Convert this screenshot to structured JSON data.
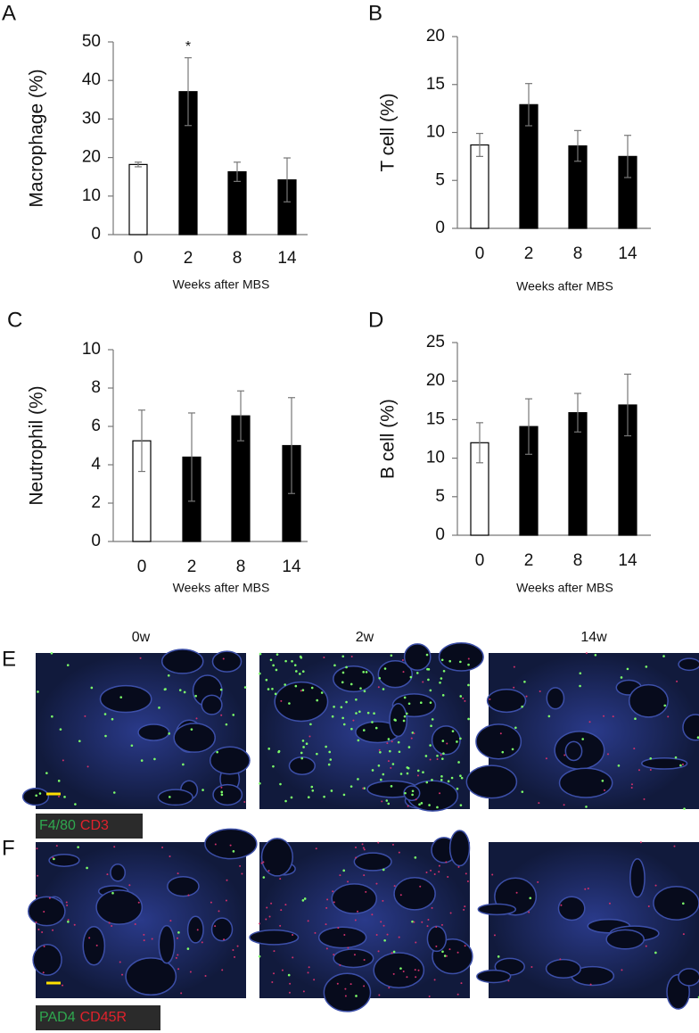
{
  "chart_data": [
    {
      "type": "bar",
      "label": "A",
      "ylabel": "Macrophage (%)",
      "xlabel": "Weeks after MBS",
      "categories": [
        "0",
        "2",
        "8",
        "14"
      ],
      "values": [
        18.2,
        37.1,
        16.3,
        14.2
      ],
      "errors": [
        0.6,
        8.8,
        2.5,
        5.7
      ],
      "colors": [
        "#ffffff",
        "#000000",
        "#000000",
        "#000000"
      ],
      "ylim": [
        0,
        50
      ],
      "yticks": [
        0,
        10,
        20,
        30,
        40,
        50
      ],
      "annotations": [
        {
          "text": "*",
          "x": "2"
        }
      ]
    },
    {
      "type": "bar",
      "label": "B",
      "ylabel": "T cell (%)",
      "xlabel": "Weeks after MBS",
      "categories": [
        "0",
        "2",
        "8",
        "14"
      ],
      "values": [
        8.7,
        12.9,
        8.6,
        7.5
      ],
      "errors": [
        1.2,
        2.2,
        1.6,
        2.2
      ],
      "colors": [
        "#ffffff",
        "#000000",
        "#000000",
        "#000000"
      ],
      "ylim": [
        0,
        20
      ],
      "yticks": [
        0,
        5,
        10,
        15,
        20
      ]
    },
    {
      "type": "bar",
      "label": "C",
      "ylabel": "Neutrophil (%)",
      "xlabel": "Weeks after MBS",
      "categories": [
        "0",
        "2",
        "8",
        "14"
      ],
      "values": [
        5.25,
        4.4,
        6.55,
        5.0
      ],
      "errors": [
        1.6,
        2.3,
        1.3,
        2.5
      ],
      "colors": [
        "#ffffff",
        "#000000",
        "#000000",
        "#000000"
      ],
      "ylim": [
        0,
        10
      ],
      "yticks": [
        0,
        2,
        4,
        6,
        8,
        10
      ]
    },
    {
      "type": "bar",
      "label": "D",
      "ylabel": "B cell (%)",
      "xlabel": "Weeks after MBS",
      "categories": [
        "0",
        "2",
        "8",
        "14"
      ],
      "values": [
        12.0,
        14.1,
        15.9,
        16.9
      ],
      "errors": [
        2.6,
        3.6,
        2.5,
        4.0
      ],
      "colors": [
        "#ffffff",
        "#000000",
        "#000000",
        "#000000"
      ],
      "ylim": [
        0,
        25
      ],
      "yticks": [
        0,
        5,
        10,
        15,
        20,
        25
      ]
    }
  ],
  "images": {
    "columns": [
      "0w",
      "2w",
      "14w"
    ],
    "rows": [
      {
        "label": "E",
        "stains": [
          {
            "text": "F4/80",
            "color": "#2fa84f"
          },
          {
            "text": "CD3",
            "color": "#e0222c"
          }
        ]
      },
      {
        "label": "F",
        "stains": [
          {
            "text": "PAD4",
            "color": "#2fa84f"
          },
          {
            "text": "CD45R",
            "color": "#e0222c"
          }
        ]
      }
    ]
  }
}
